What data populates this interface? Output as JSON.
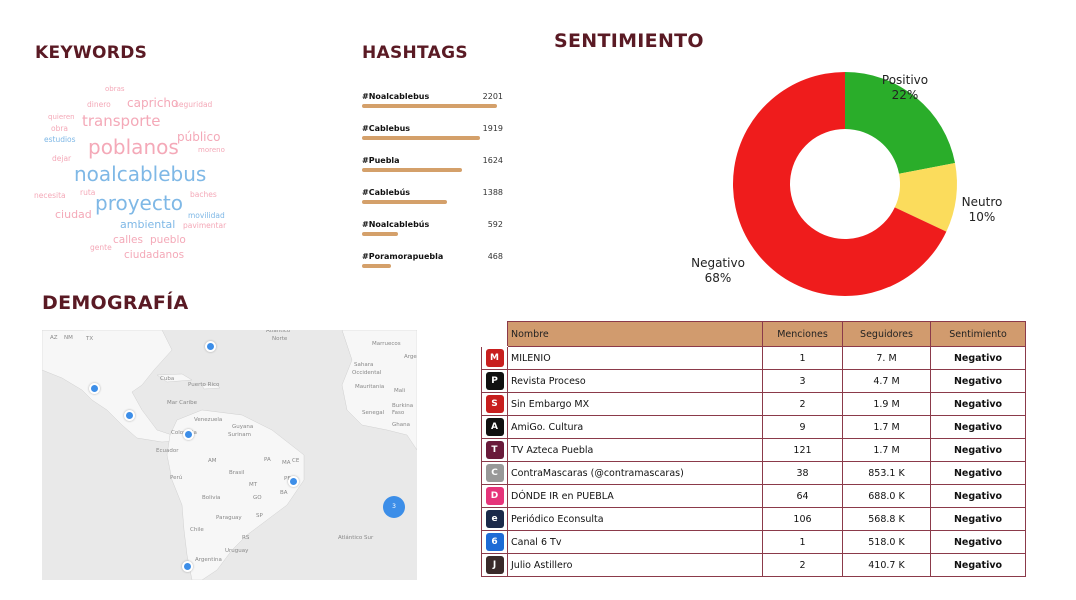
{
  "sections": {
    "keywords": "KEYWORDS",
    "hashtags": "HASHTAGS",
    "sentiment": "SENTIMIENTO",
    "demography": "DEMOGRAFÍA"
  },
  "wordcloud": [
    {
      "word": "obras",
      "color": "pink"
    },
    {
      "word": "dinero",
      "color": "pink"
    },
    {
      "word": "capricho",
      "color": "pink"
    },
    {
      "word": "seguridad",
      "color": "pink"
    },
    {
      "word": "quieren",
      "color": "pink"
    },
    {
      "word": "transporte",
      "color": "pink"
    },
    {
      "word": "obra",
      "color": "pink"
    },
    {
      "word": "público",
      "color": "pink"
    },
    {
      "word": "estudios",
      "color": "blue"
    },
    {
      "word": "poblanos",
      "color": "pink"
    },
    {
      "word": "moreno",
      "color": "pink"
    },
    {
      "word": "dejar",
      "color": "pink"
    },
    {
      "word": "noalcablebus",
      "color": "blue"
    },
    {
      "word": "ruta",
      "color": "pink"
    },
    {
      "word": "necesita",
      "color": "pink"
    },
    {
      "word": "baches",
      "color": "pink"
    },
    {
      "word": "proyecto",
      "color": "blue"
    },
    {
      "word": "ciudad",
      "color": "pink"
    },
    {
      "word": "movilidad",
      "color": "blue"
    },
    {
      "word": "ambiental",
      "color": "blue"
    },
    {
      "word": "pavimentar",
      "color": "pink"
    },
    {
      "word": "calles",
      "color": "pink"
    },
    {
      "word": "pueblo",
      "color": "pink"
    },
    {
      "word": "gente",
      "color": "pink"
    },
    {
      "word": "ciudadanos",
      "color": "pink"
    }
  ],
  "hashtags": [
    {
      "tag": "#Noalcablebus",
      "count": 2201
    },
    {
      "tag": "#Cablebus",
      "count": 1919
    },
    {
      "tag": "#Puebla",
      "count": 1624
    },
    {
      "tag": "#Cablebús",
      "count": 1388
    },
    {
      "tag": "#Noalcablebús",
      "count": 592
    },
    {
      "tag": "#Poramorapuebla",
      "count": 468
    }
  ],
  "chart_data": {
    "type": "pie",
    "title": "SENTIMIENTO",
    "categories": [
      "Positivo",
      "Neutro",
      "Negativo"
    ],
    "values": [
      22,
      10,
      68
    ],
    "labels": [
      "22%",
      "10%",
      "68%"
    ],
    "colors": [
      "#2aad2a",
      "#fbdc5c",
      "#ef1c1c"
    ]
  },
  "map": {
    "labels": [
      "AZ",
      "NM",
      "TX",
      "Atlántico",
      "Norte",
      "Marruecos",
      "Arge",
      "Sahara",
      "Occidental",
      "Cuba",
      "Puerto Rico",
      "Mauritania",
      "Mali",
      "Mar Caribe",
      "Senegal",
      "Burkina",
      "Faso",
      "Venezuela",
      "Guyana",
      "Ghana",
      "Colombia",
      "Surinam",
      "Ecuador",
      "AM",
      "PA",
      "MA",
      "CE",
      "Perú",
      "Brasil",
      "PE",
      "MT",
      "BA",
      "Bolivia",
      "GO",
      "Paraguay",
      "SP",
      "Chile",
      "RS",
      "Uruguay",
      "Atlántico Sur",
      "Argentina"
    ],
    "cluster_count": "3"
  },
  "table": {
    "headers": [
      "Nombre",
      "Menciones",
      "Seguidores",
      "Sentimiento"
    ],
    "rows": [
      {
        "name": "MILENIO",
        "mentions": "1",
        "followers": "7. M",
        "sentiment": "Negativo",
        "logo_color": "#c81e1e",
        "logo_text": "M"
      },
      {
        "name": "Revista Proceso",
        "mentions": "3",
        "followers": "4.7 M",
        "sentiment": "Negativo",
        "logo_color": "#111111",
        "logo_text": "P"
      },
      {
        "name": "Sin Embargo MX",
        "mentions": "2",
        "followers": "1.9 M",
        "sentiment": "Negativo",
        "logo_color": "#c81e1e",
        "logo_text": "S"
      },
      {
        "name": "AmiGo. Cultura",
        "mentions": "9",
        "followers": "1.7 M",
        "sentiment": "Negativo",
        "logo_color": "#111111",
        "logo_text": "A"
      },
      {
        "name": "TV Azteca Puebla",
        "mentions": "121",
        "followers": "1.7 M",
        "sentiment": "Negativo",
        "logo_color": "#6a1a3a",
        "logo_text": "T"
      },
      {
        "name": "ContraMascaras (@contramascaras)",
        "mentions": "38",
        "followers": "853.1 K",
        "sentiment": "Negativo",
        "logo_color": "#999999",
        "logo_text": "C"
      },
      {
        "name": "DÓNDE IR en PUEBLA",
        "mentions": "64",
        "followers": "688.0 K",
        "sentiment": "Negativo",
        "logo_color": "#e6337a",
        "logo_text": "D"
      },
      {
        "name": "Periódico Econsulta",
        "mentions": "106",
        "followers": "568.8 K",
        "sentiment": "Negativo",
        "logo_color": "#1b2a4a",
        "logo_text": "e"
      },
      {
        "name": "Canal 6 Tv",
        "mentions": "1",
        "followers": "518.0 K",
        "sentiment": "Negativo",
        "logo_color": "#1e6bd6",
        "logo_text": "6"
      },
      {
        "name": "Julio Astillero",
        "mentions": "2",
        "followers": "410.7 K",
        "sentiment": "Negativo",
        "logo_color": "#3a2a2a",
        "logo_text": "J"
      }
    ]
  }
}
